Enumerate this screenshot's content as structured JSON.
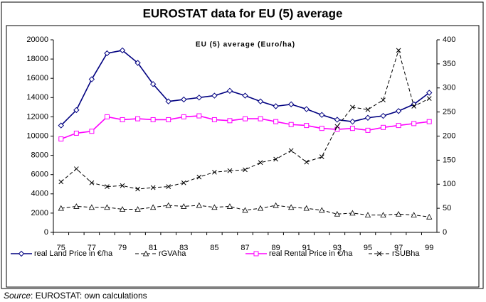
{
  "chart_data": {
    "type": "line",
    "title": "EUROSTAT data for EU (5) average",
    "subtitle": "EU (5)  average (Euro/ha)",
    "categories": [
      "75",
      null,
      "77",
      null,
      "79",
      null,
      "81",
      null,
      "83",
      null,
      "85",
      null,
      "87",
      null,
      "89",
      null,
      "91",
      null,
      "93",
      null,
      "95",
      null,
      "97",
      null,
      "99"
    ],
    "ylim": [
      0,
      20000
    ],
    "yticks": [
      0,
      2000,
      4000,
      6000,
      8000,
      10000,
      12000,
      14000,
      16000,
      18000,
      20000
    ],
    "y2lim": [
      0,
      400
    ],
    "y2ticks": [
      0,
      50,
      100,
      150,
      200,
      250,
      300,
      350,
      400
    ],
    "legend": "bottom",
    "series": [
      {
        "name": "real Land Price in €/ha",
        "color": "#000080",
        "marker": "diamond",
        "dash": false,
        "values": [
          11100,
          12700,
          15900,
          18600,
          18900,
          17600,
          15400,
          13600,
          13800,
          14000,
          14200,
          14700,
          14200,
          13600,
          13100,
          13300,
          12800,
          12200,
          11700,
          11500,
          11900,
          12100,
          12600,
          13300,
          14500
        ]
      },
      {
        "name": "rGVAha",
        "color": "#000000",
        "marker": "triangle",
        "dash": true,
        "values": [
          2500,
          2700,
          2600,
          2600,
          2400,
          2400,
          2600,
          2800,
          2700,
          2800,
          2600,
          2700,
          2300,
          2500,
          2800,
          2600,
          2500,
          2300,
          1900,
          2000,
          1800,
          1800,
          1900,
          1800,
          1600
        ]
      },
      {
        "name": "real Rental Price in €/ha",
        "color": "#ff00ff",
        "marker": "square",
        "dash": false,
        "axis": "y2",
        "values": [
          194,
          206,
          210,
          240,
          234,
          236,
          234,
          234,
          240,
          242,
          234,
          232,
          236,
          236,
          230,
          224,
          222,
          216,
          214,
          216,
          212,
          218,
          222,
          226,
          230
        ]
      },
      {
        "name": "rSUBha",
        "color": "#000000",
        "marker": "x",
        "dash": true,
        "axis": "y2",
        "values": [
          105,
          132,
          103,
          95,
          97,
          90,
          93,
          95,
          103,
          115,
          125,
          128,
          130,
          145,
          152,
          170,
          146,
          157,
          220,
          260,
          255,
          275,
          378,
          262,
          278
        ]
      }
    ],
    "source_label": "Source",
    "source_text": ": EUROSTAT: own calculations"
  }
}
